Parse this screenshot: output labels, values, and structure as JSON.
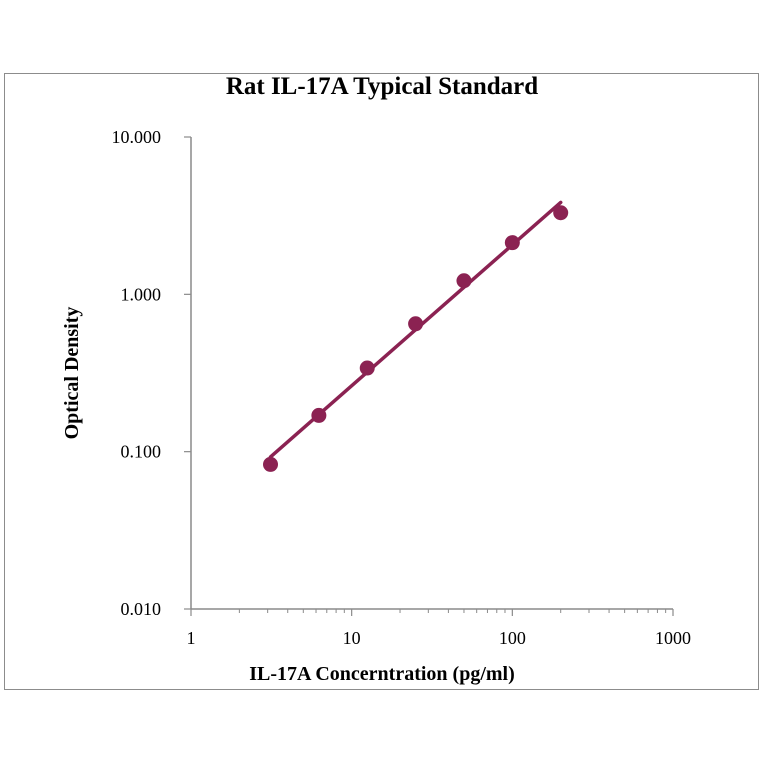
{
  "chart_data": {
    "type": "scatter",
    "title": "Rat IL-17A Typical Standard",
    "xlabel": "IL-17A Concerntration (pg/ml)",
    "ylabel": "Optical Density",
    "xscale": "log",
    "yscale": "log",
    "xlim": [
      1,
      1000
    ],
    "ylim": [
      0.01,
      10
    ],
    "x_ticks": [
      {
        "value": 1,
        "label": "1"
      },
      {
        "value": 10,
        "label": "10"
      },
      {
        "value": 100,
        "label": "100"
      },
      {
        "value": 1000,
        "label": "1000"
      }
    ],
    "y_ticks": [
      {
        "value": 0.01,
        "label": "0.010"
      },
      {
        "value": 0.1,
        "label": "0.100"
      },
      {
        "value": 1,
        "label": "1.000"
      },
      {
        "value": 10,
        "label": "10.000"
      }
    ],
    "grid": false,
    "legend": "none",
    "series": [
      {
        "x": [
          3.125,
          6.25,
          12.5,
          25,
          50,
          100,
          200
        ],
        "y": [
          0.083,
          0.17,
          0.34,
          0.65,
          1.22,
          2.13,
          3.3
        ],
        "color": "#8b2252",
        "fit_line": true
      }
    ]
  }
}
